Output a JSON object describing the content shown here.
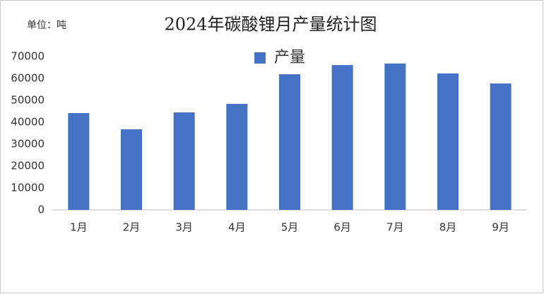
{
  "chart_data": {
    "type": "bar",
    "title": "2024年碳酸锂月产量统计图",
    "unit_label": "单位：吨",
    "categories": [
      "1月",
      "2月",
      "3月",
      "4月",
      "5月",
      "6月",
      "7月",
      "8月",
      "9月"
    ],
    "series": [
      {
        "name": "产量",
        "color": "#4472c4",
        "values": [
          44200,
          36800,
          44500,
          48400,
          61900,
          66100,
          66800,
          62300,
          57700
        ]
      }
    ],
    "ylim": [
      0,
      70000
    ],
    "yticks": [
      0,
      10000,
      20000,
      30000,
      40000,
      50000,
      60000,
      70000
    ],
    "grid": false,
    "legend": "top"
  }
}
